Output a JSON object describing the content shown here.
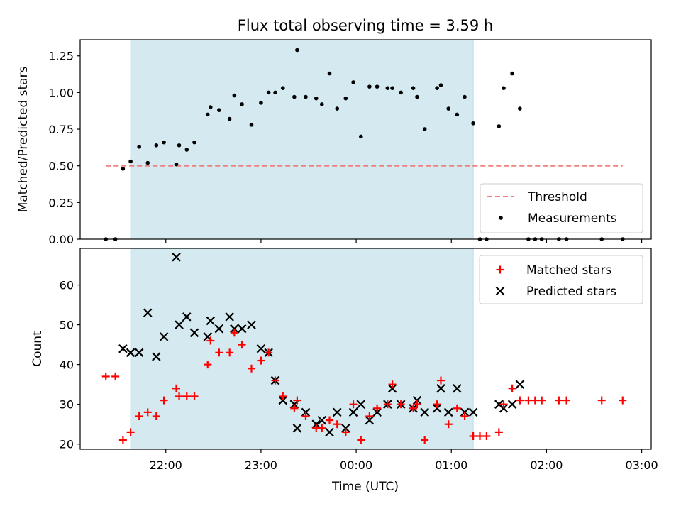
{
  "figure": {
    "title": "Flux total observing time = 3.59 h",
    "xlabel": "Time (UTC)",
    "x_ticks": [
      "22:00",
      "23:00",
      "00:00",
      "01:00",
      "02:00",
      "03:00"
    ]
  },
  "chart_data": [
    {
      "type": "scatter",
      "title": "Flux total observing time = 3.59 h",
      "xlabel": "Time (UTC)",
      "ylabel": "Matched/Predicted stars",
      "x_unit": "hours after 00:00 UTC",
      "xlim": [
        -2.9,
        3.1
      ],
      "ylim": [
        0.0,
        1.36
      ],
      "y_ticks": [
        "0.00",
        "0.25",
        "0.50",
        "0.75",
        "1.00",
        "1.25"
      ],
      "shaded_interval": [
        -2.37,
        1.23
      ],
      "shaded_color": "#d4eaf0",
      "threshold": {
        "name": "Threshold",
        "value": 0.5,
        "x_range": [
          -2.63,
          2.8
        ],
        "color": "#f07f7f"
      },
      "legend": {
        "position": "lower right",
        "entries": [
          "Threshold",
          "Measurements"
        ]
      },
      "series": [
        {
          "name": "Measurements",
          "color": "#000000",
          "points": [
            [
              -2.63,
              0.0
            ],
            [
              -2.53,
              0.0
            ],
            [
              -2.45,
              0.48
            ],
            [
              -2.37,
              0.53
            ],
            [
              -2.28,
              0.63
            ],
            [
              -2.19,
              0.52
            ],
            [
              -2.1,
              0.64
            ],
            [
              -2.02,
              0.66
            ],
            [
              -1.89,
              0.51
            ],
            [
              -1.86,
              0.64
            ],
            [
              -1.78,
              0.61
            ],
            [
              -1.7,
              0.66
            ],
            [
              -1.56,
              0.85
            ],
            [
              -1.53,
              0.9
            ],
            [
              -1.44,
              0.88
            ],
            [
              -1.33,
              0.82
            ],
            [
              -1.28,
              0.98
            ],
            [
              -1.2,
              0.92
            ],
            [
              -1.1,
              0.78
            ],
            [
              -1.0,
              0.93
            ],
            [
              -0.92,
              1.0
            ],
            [
              -0.85,
              1.0
            ],
            [
              -0.77,
              1.03
            ],
            [
              -0.65,
              0.97
            ],
            [
              -0.62,
              1.29
            ],
            [
              -0.53,
              0.97
            ],
            [
              -0.42,
              0.96
            ],
            [
              -0.36,
              0.92
            ],
            [
              -0.28,
              1.13
            ],
            [
              -0.2,
              0.89
            ],
            [
              -0.11,
              0.96
            ],
            [
              -0.03,
              1.07
            ],
            [
              0.05,
              0.7
            ],
            [
              0.14,
              1.04
            ],
            [
              0.22,
              1.04
            ],
            [
              0.33,
              1.03
            ],
            [
              0.38,
              1.03
            ],
            [
              0.47,
              1.0
            ],
            [
              0.6,
              1.03
            ],
            [
              0.64,
              0.97
            ],
            [
              0.72,
              0.75
            ],
            [
              0.85,
              1.03
            ],
            [
              0.89,
              1.05
            ],
            [
              0.97,
              0.89
            ],
            [
              1.06,
              0.85
            ],
            [
              1.14,
              0.97
            ],
            [
              1.23,
              0.79
            ],
            [
              1.3,
              0.0
            ],
            [
              1.37,
              0.0
            ],
            [
              1.5,
              0.77
            ],
            [
              1.55,
              1.03
            ],
            [
              1.64,
              1.13
            ],
            [
              1.72,
              0.89
            ],
            [
              1.81,
              0.0
            ],
            [
              1.88,
              0.0
            ],
            [
              1.95,
              0.0
            ],
            [
              2.13,
              0.0
            ],
            [
              2.21,
              0.0
            ],
            [
              2.58,
              0.0
            ],
            [
              2.8,
              0.0
            ]
          ]
        }
      ]
    },
    {
      "type": "scatter",
      "title": "",
      "xlabel": "Time (UTC)",
      "ylabel": "Count",
      "x_unit": "hours after 00:00 UTC",
      "xlim": [
        -2.9,
        3.1
      ],
      "ylim": [
        18.7,
        69.2
      ],
      "y_ticks": [
        "20",
        "30",
        "40",
        "50",
        "60"
      ],
      "shaded_interval": [
        -2.37,
        1.23
      ],
      "legend": {
        "position": "upper right",
        "entries": [
          "Matched stars",
          "Predicted stars"
        ]
      },
      "series": [
        {
          "name": "Matched stars",
          "marker": "plus",
          "color": "#ff0000",
          "points": [
            [
              -2.63,
              37
            ],
            [
              -2.53,
              37
            ],
            [
              -2.45,
              21
            ],
            [
              -2.37,
              23
            ],
            [
              -2.28,
              27
            ],
            [
              -2.19,
              28
            ],
            [
              -2.1,
              27
            ],
            [
              -2.02,
              31
            ],
            [
              -1.89,
              34
            ],
            [
              -1.86,
              32
            ],
            [
              -1.78,
              32
            ],
            [
              -1.7,
              32
            ],
            [
              -1.56,
              40
            ],
            [
              -1.53,
              46
            ],
            [
              -1.44,
              43
            ],
            [
              -1.33,
              43
            ],
            [
              -1.28,
              48
            ],
            [
              -1.2,
              45
            ],
            [
              -1.1,
              39
            ],
            [
              -1.0,
              41
            ],
            [
              -0.92,
              43
            ],
            [
              -0.85,
              36
            ],
            [
              -0.77,
              32
            ],
            [
              -0.65,
              29
            ],
            [
              -0.62,
              31
            ],
            [
              -0.53,
              27
            ],
            [
              -0.42,
              24
            ],
            [
              -0.36,
              24
            ],
            [
              -0.28,
              26
            ],
            [
              -0.2,
              25
            ],
            [
              -0.11,
              23
            ],
            [
              -0.03,
              30
            ],
            [
              0.05,
              21
            ],
            [
              0.14,
              27
            ],
            [
              0.22,
              29
            ],
            [
              0.33,
              30
            ],
            [
              0.38,
              35
            ],
            [
              0.47,
              30
            ],
            [
              0.6,
              29
            ],
            [
              0.64,
              30
            ],
            [
              0.72,
              21
            ],
            [
              0.85,
              30
            ],
            [
              0.89,
              36
            ],
            [
              0.97,
              25
            ],
            [
              1.06,
              29
            ],
            [
              1.14,
              27
            ],
            [
              1.23,
              22
            ],
            [
              1.3,
              22
            ],
            [
              1.37,
              22
            ],
            [
              1.5,
              23
            ],
            [
              1.55,
              30
            ],
            [
              1.64,
              34
            ],
            [
              1.72,
              31
            ],
            [
              1.81,
              31
            ],
            [
              1.88,
              31
            ],
            [
              1.95,
              31
            ],
            [
              2.13,
              31
            ],
            [
              2.21,
              31
            ],
            [
              2.58,
              31
            ],
            [
              2.8,
              31
            ]
          ]
        },
        {
          "name": "Predicted stars",
          "marker": "x",
          "color": "#000000",
          "points": [
            [
              -2.45,
              44
            ],
            [
              -2.37,
              43
            ],
            [
              -2.28,
              43
            ],
            [
              -2.19,
              53
            ],
            [
              -2.1,
              42
            ],
            [
              -2.02,
              47
            ],
            [
              -1.89,
              67
            ],
            [
              -1.86,
              50
            ],
            [
              -1.78,
              52
            ],
            [
              -1.7,
              48
            ],
            [
              -1.56,
              47
            ],
            [
              -1.53,
              51
            ],
            [
              -1.44,
              49
            ],
            [
              -1.33,
              52
            ],
            [
              -1.28,
              49
            ],
            [
              -1.2,
              49
            ],
            [
              -1.1,
              50
            ],
            [
              -1.0,
              44
            ],
            [
              -0.92,
              43
            ],
            [
              -0.85,
              36
            ],
            [
              -0.77,
              31
            ],
            [
              -0.65,
              30
            ],
            [
              -0.62,
              24
            ],
            [
              -0.53,
              28
            ],
            [
              -0.42,
              25
            ],
            [
              -0.36,
              26
            ],
            [
              -0.28,
              23
            ],
            [
              -0.2,
              28
            ],
            [
              -0.11,
              24
            ],
            [
              -0.03,
              28
            ],
            [
              0.05,
              30
            ],
            [
              0.14,
              26
            ],
            [
              0.22,
              28
            ],
            [
              0.33,
              30
            ],
            [
              0.38,
              34
            ],
            [
              0.47,
              30
            ],
            [
              0.6,
              29
            ],
            [
              0.64,
              31
            ],
            [
              0.72,
              28
            ],
            [
              0.85,
              29
            ],
            [
              0.89,
              34
            ],
            [
              0.97,
              28
            ],
            [
              1.06,
              34
            ],
            [
              1.14,
              28
            ],
            [
              1.23,
              28
            ],
            [
              1.5,
              30
            ],
            [
              1.55,
              29
            ],
            [
              1.64,
              30
            ],
            [
              1.72,
              35
            ]
          ]
        }
      ]
    }
  ]
}
